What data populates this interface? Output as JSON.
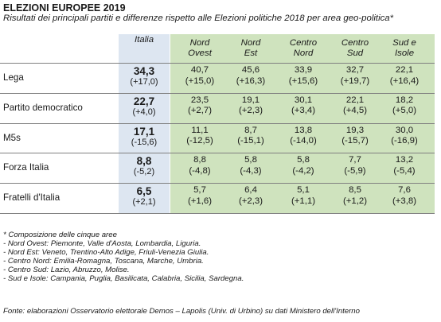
{
  "title": "ELEZIONI EUROPEE 2019",
  "subtitle": "Risultati dei principali partiti e differenze rispetto alle Elezioni politiche 2018 per area geo-politica*",
  "columns": [
    {
      "line1": "Italia",
      "line2": ""
    },
    {
      "line1": "Nord",
      "line2": "Ovest"
    },
    {
      "line1": "Nord",
      "line2": "Est"
    },
    {
      "line1": "Centro",
      "line2": "Nord"
    },
    {
      "line1": "Centro",
      "line2": "Sud"
    },
    {
      "line1": "Sud e",
      "line2": "Isole"
    }
  ],
  "rows": [
    {
      "party": "Lega",
      "values": [
        {
          "v": "34,3",
          "d": "(+17,0)"
        },
        {
          "v": "40,7",
          "d": "(+15,0)"
        },
        {
          "v": "45,6",
          "d": "(+16,3)"
        },
        {
          "v": "33,9",
          "d": "(+15,6)"
        },
        {
          "v": "32,7",
          "d": "(+19,7)"
        },
        {
          "v": "22,1",
          "d": "(+16,4)"
        }
      ]
    },
    {
      "party": "Partito democratico",
      "values": [
        {
          "v": "22,7",
          "d": "(+4,0)"
        },
        {
          "v": "23,5",
          "d": "(+2,7)"
        },
        {
          "v": "19,1",
          "d": "(+2,3)"
        },
        {
          "v": "30,1",
          "d": "(+3,4)"
        },
        {
          "v": "22,1",
          "d": "(+4,5)"
        },
        {
          "v": "18,2",
          "d": "(+5,0)"
        }
      ]
    },
    {
      "party": "M5s",
      "values": [
        {
          "v": "17,1",
          "d": "(-15,6)"
        },
        {
          "v": "11,1",
          "d": "(-12,5)"
        },
        {
          "v": "8,7",
          "d": "(-15,1)"
        },
        {
          "v": "13,8",
          "d": "(-14,0)"
        },
        {
          "v": "19,3",
          "d": "(-15,7)"
        },
        {
          "v": "30,0",
          "d": "(-16,9)"
        }
      ]
    },
    {
      "party": "Forza Italia",
      "values": [
        {
          "v": "8,8",
          "d": "(-5,2)"
        },
        {
          "v": "8,8",
          "d": "(-4,8)"
        },
        {
          "v": "5,8",
          "d": "(-4,3)"
        },
        {
          "v": "5,8",
          "d": "(-4,2)"
        },
        {
          "v": "7,7",
          "d": "(-5,9)"
        },
        {
          "v": "13,2",
          "d": "(-5,4)"
        }
      ]
    },
    {
      "party": "Fratelli d'Italia",
      "values": [
        {
          "v": "6,5",
          "d": "(+2,1)"
        },
        {
          "v": "5,7",
          "d": "(+1,6)"
        },
        {
          "v": "6,4",
          "d": "(+2,3)"
        },
        {
          "v": "5,1",
          "d": "(+1,1)"
        },
        {
          "v": "8,5",
          "d": "(+1,2)"
        },
        {
          "v": "7,6",
          "d": "(+3,8)"
        }
      ]
    }
  ],
  "notes": [
    "* Composizione delle cinque aree",
    "- Nord Ovest: Piemonte, Valle d'Aosta, Lombardia, Liguria.",
    "- Nord Est: Veneto, Trentino-Alto Adige, Friuli-Venezia Giulia.",
    "- Centro Nord: Emilia-Romagna, Toscana, Marche, Umbria.",
    "- Centro Sud: Lazio, Abruzzo, Molise.",
    "- Sud e Isole: Campania, Puglia, Basilicata, Calabria, Sicilia, Sardegna."
  ],
  "source": "Fonte: elaborazioni Osservatorio elettorale Demos – Lapolis (Univ. di Urbino) su dati Ministero dell'Interno"
}
